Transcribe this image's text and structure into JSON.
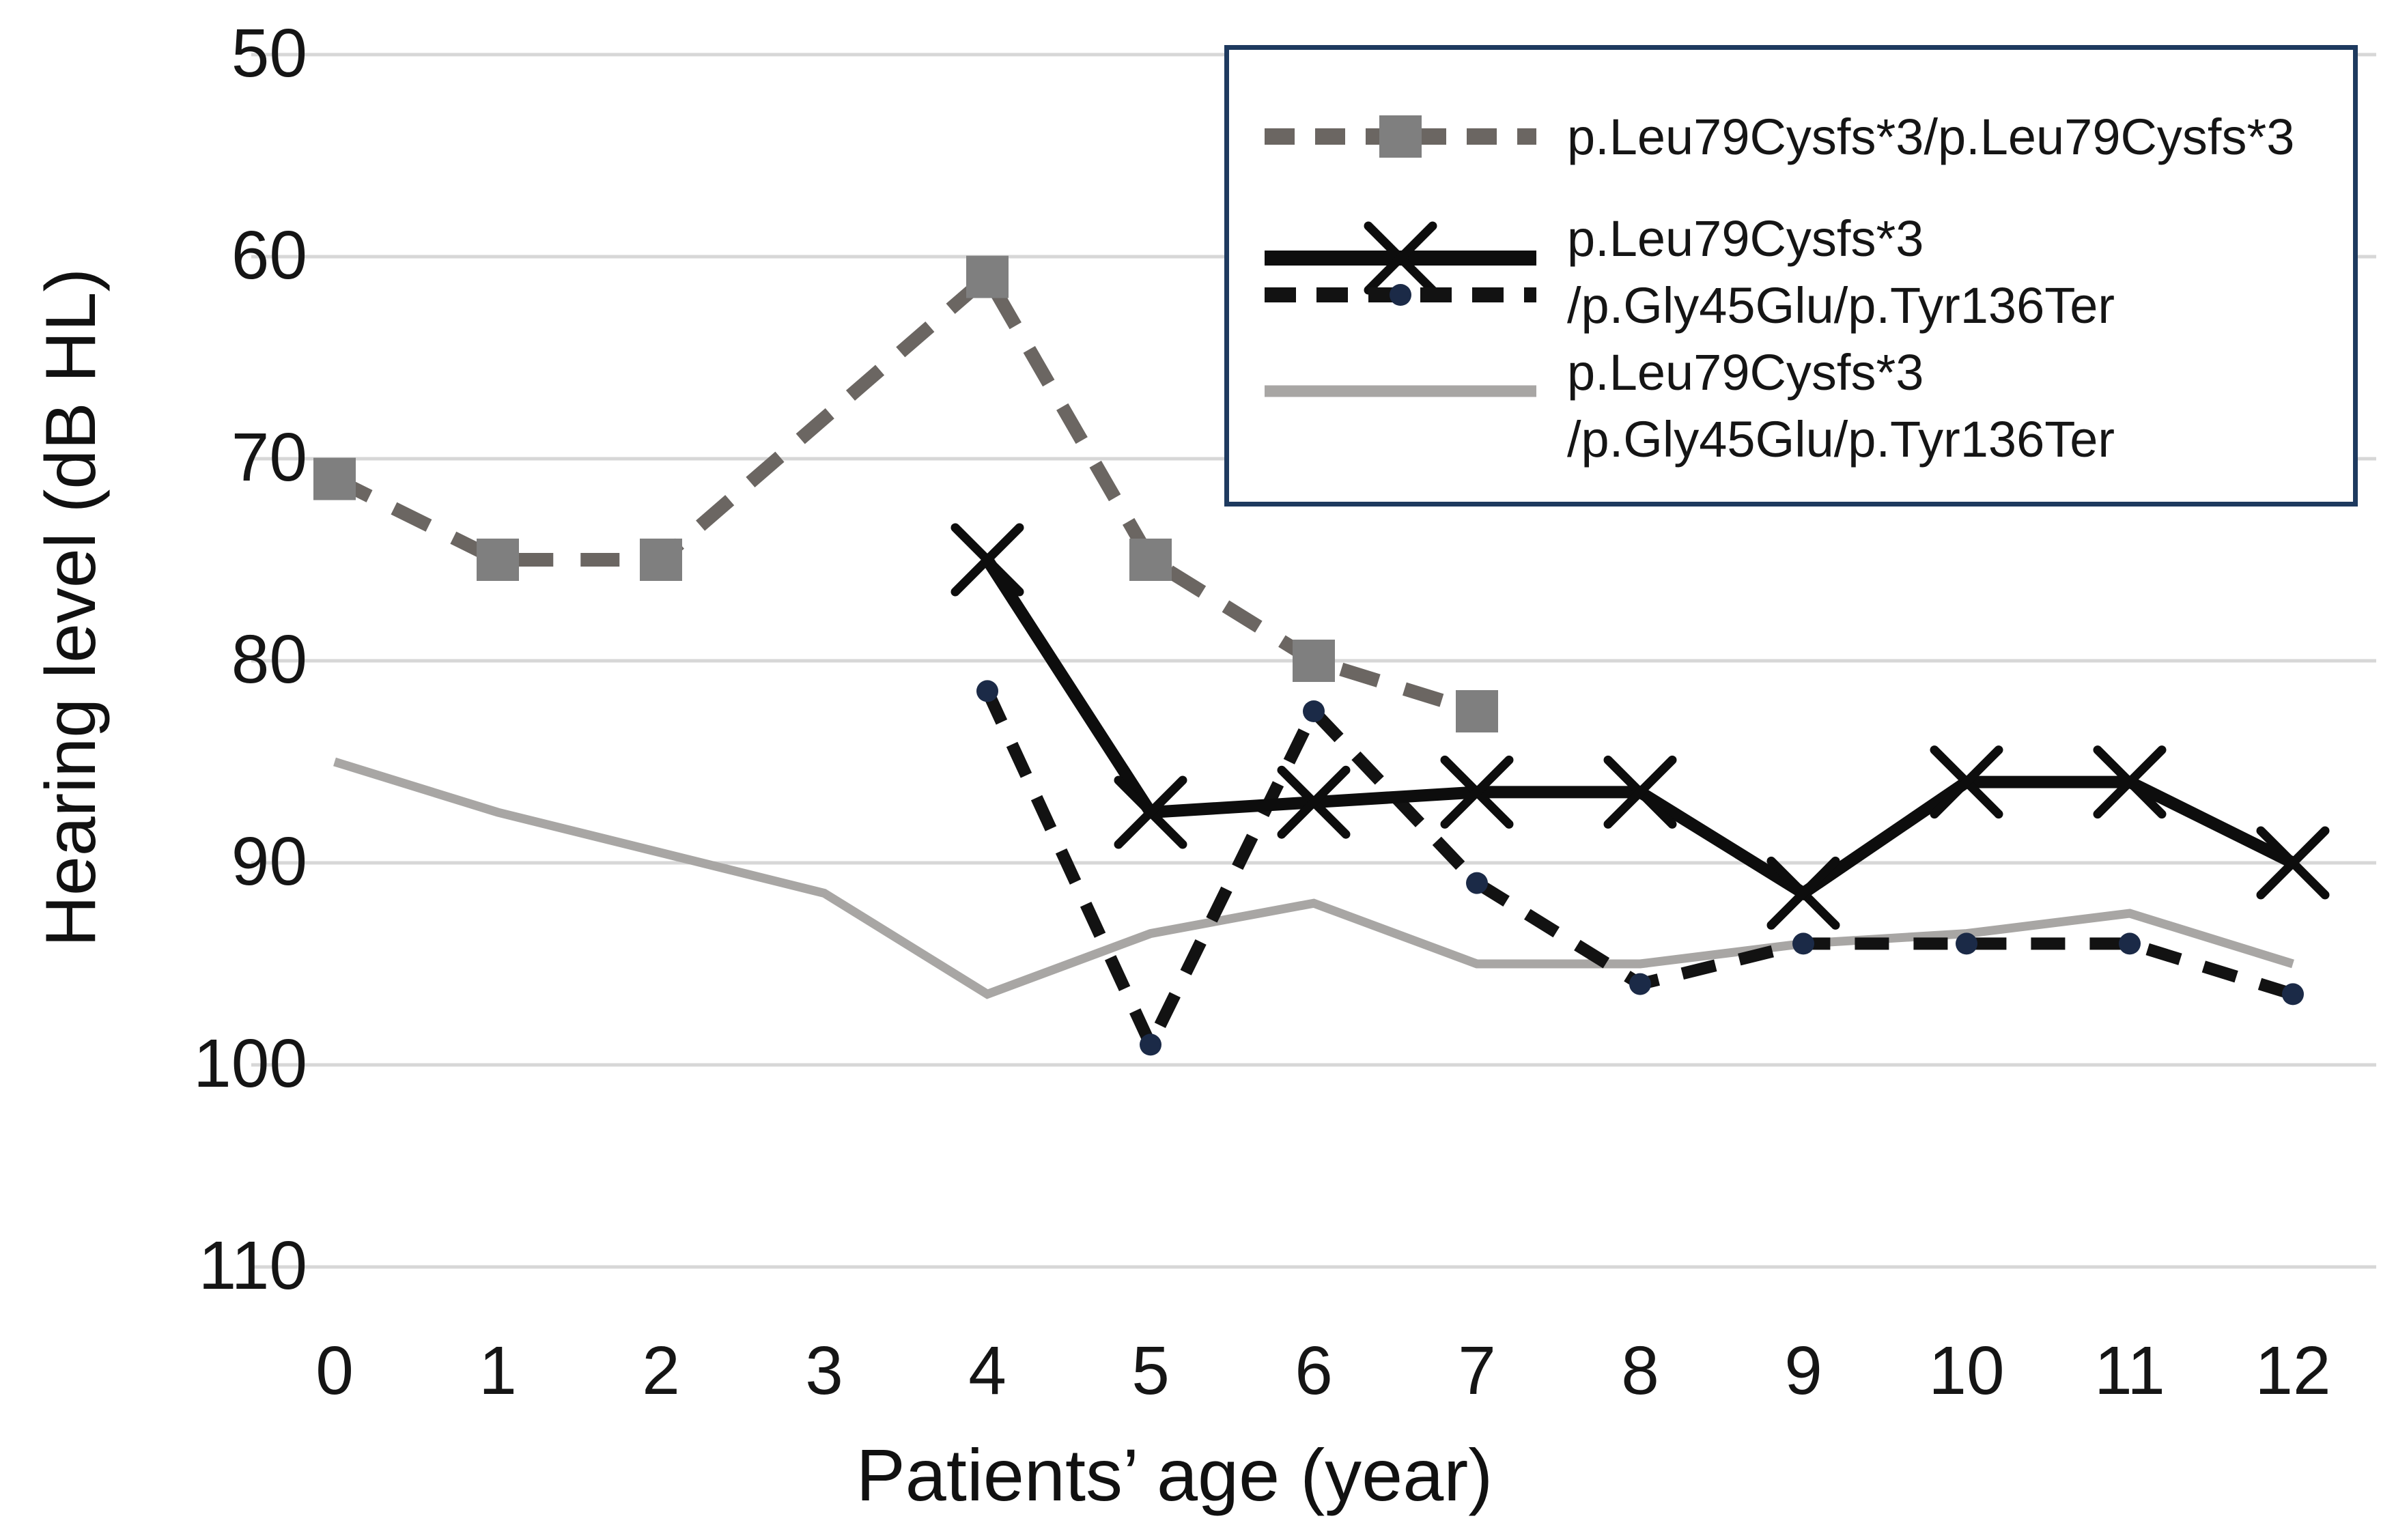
{
  "figure": {
    "y_axis_title": "Hearing level (dB HL)",
    "x_axis_title": "Patients’ age (year)"
  },
  "legend": {
    "position": "top-right",
    "border_color": "#1e3a5f",
    "entries": [
      {
        "label_line1": "p.Leu79Cysfs*3/p.Leu79Cysfs*3",
        "label_line2": "",
        "samples": [
          "dashed-square"
        ]
      },
      {
        "label_line1": "p.Leu79Cysfs*3",
        "label_line2": "/p.Gly45Glu/p.Tyr136Ter",
        "samples": [
          "solid-x",
          "dashed-dot"
        ]
      },
      {
        "label_line1": "p.Leu79Cysfs*3",
        "label_line2": "/p.Gly45Glu/p.Tyr136Ter",
        "samples": [
          "plain"
        ]
      }
    ]
  },
  "colors": {
    "background": "#ffffff",
    "gridline": "#d7d7d7",
    "text": "#151515",
    "legend_border": "#1e3a5f"
  },
  "styles": {
    "dashed-square": {
      "line": "#6b6662",
      "width": 20,
      "dash": "57 40",
      "marker": "square",
      "marker_color": "#7f7f7f",
      "marker_size": 62,
      "legend_dash": "44 30"
    },
    "solid-x": {
      "line": "#0d0d0d",
      "width": 18,
      "dash": "",
      "marker": "x",
      "marker_color": "#0d0d0d",
      "marker_size": 94,
      "legend_dash": ""
    },
    "dashed-dot": {
      "line": "#121212",
      "width": 18,
      "dash": "50 36",
      "marker": "dot",
      "marker_color": "#1b2a47",
      "marker_size": 32,
      "legend_dash": "46 30"
    },
    "plain": {
      "line": "#a8a6a4",
      "width": 13,
      "dash": "",
      "marker": "none",
      "marker_color": "#a8a6a4",
      "marker_size": 0,
      "legend_dash": ""
    }
  },
  "chart_data": {
    "type": "line",
    "title": "",
    "xlabel": "Patients’ age (year)",
    "ylabel": "Hearing level (dB HL)",
    "x_ticks": [
      0,
      1,
      2,
      3,
      4,
      5,
      6,
      7,
      8,
      9,
      10,
      11,
      12
    ],
    "y_ticks": [
      50,
      60,
      70,
      80,
      90,
      100,
      110
    ],
    "ylim": [
      50,
      110
    ],
    "xlim": [
      0,
      12
    ],
    "y_axis_inverted": true,
    "grid": "horizontal",
    "legend_position": "top-right",
    "series": [
      {
        "name": "p.Leu79Cysfs*3/p.Leu79Cysfs*3",
        "kind": "dashed-square",
        "x": [
          0,
          1,
          2,
          4,
          5,
          6,
          7
        ],
        "y": [
          71,
          75,
          75,
          61,
          75,
          80,
          82.5
        ]
      },
      {
        "name": "p.Leu79Cysfs*3/p.Gly45Glu/p.Tyr136Ter (no marker)",
        "kind": "plain",
        "x": [
          0,
          1,
          2,
          3,
          4,
          5,
          6,
          7,
          8,
          9,
          10,
          11,
          12
        ],
        "y": [
          85,
          87.5,
          89.5,
          91.5,
          96.5,
          93.5,
          92,
          95,
          95,
          94,
          93.5,
          92.5,
          95
        ]
      },
      {
        "name": "p.Leu79Cysfs*3/p.Gly45Glu/p.Tyr136Ter (dashed, dot marker)",
        "kind": "dashed-dot",
        "x": [
          4,
          5,
          6,
          7,
          8,
          9,
          10,
          11,
          12
        ],
        "y": [
          81.5,
          99,
          82.5,
          91,
          96,
          94,
          94,
          94,
          96.5
        ]
      },
      {
        "name": "p.Leu79Cysfs*3/p.Gly45Glu/p.Tyr136Ter (solid, x marker)",
        "kind": "solid-x",
        "x": [
          4,
          5,
          6,
          7,
          8,
          9,
          10,
          11,
          12
        ],
        "y": [
          75,
          87.5,
          87,
          86.5,
          86.5,
          91.5,
          86,
          86,
          90
        ]
      }
    ]
  }
}
